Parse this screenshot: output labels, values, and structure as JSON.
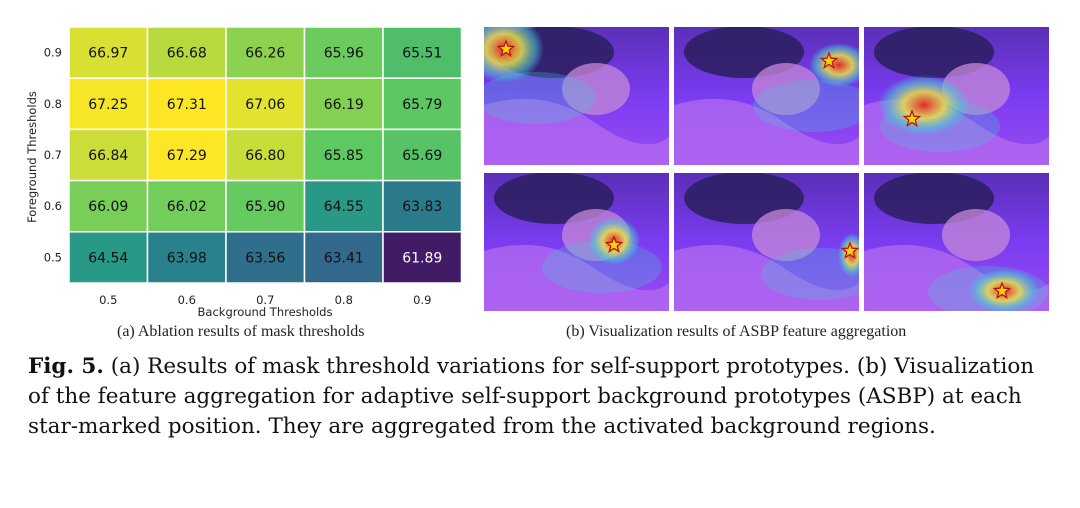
{
  "chart_data": {
    "type": "heatmap",
    "xlabel": "Background Thresholds",
    "ylabel": "Foreground Thresholds",
    "x": [
      "0.5",
      "0.6",
      "0.7",
      "0.8",
      "0.9"
    ],
    "y": [
      "0.9",
      "0.8",
      "0.7",
      "0.6",
      "0.5"
    ],
    "values": [
      [
        66.97,
        66.68,
        66.26,
        65.96,
        65.51
      ],
      [
        67.25,
        67.31,
        67.06,
        66.19,
        65.79
      ],
      [
        66.84,
        67.29,
        66.8,
        65.85,
        65.69
      ],
      [
        66.09,
        66.02,
        65.9,
        64.55,
        63.83
      ],
      [
        64.54,
        63.98,
        63.56,
        63.41,
        61.89
      ]
    ],
    "colormap": "viridis",
    "vmin": 61.89,
    "vmax": 67.31
  },
  "captions": {
    "a": "(a) Ablation results of mask thresholds",
    "b": "(b) Visualization results of ASBP feature aggregation"
  },
  "figure_caption": {
    "label": "Fig. 5.",
    "text": "(a) Results of mask threshold variations for self-support prototypes. (b) Visualization of the feature aggregation for adaptive self-support background prototypes (ASBP) at each star-marked position. They are aggregated from the activated background regions."
  },
  "visualization": {
    "panels": [
      {
        "hot": "top-left"
      },
      {
        "hot": "top-right"
      },
      {
        "hot": "center-left"
      },
      {
        "hot": "center-right"
      },
      {
        "hot": "right-edge"
      },
      {
        "hot": "bottom-right"
      }
    ],
    "colors": {
      "base": "#7a3cf0",
      "mid": "#47c7d8",
      "warm": "#e8e14a",
      "hot": "#e0292b",
      "star": "#f5d800"
    }
  }
}
